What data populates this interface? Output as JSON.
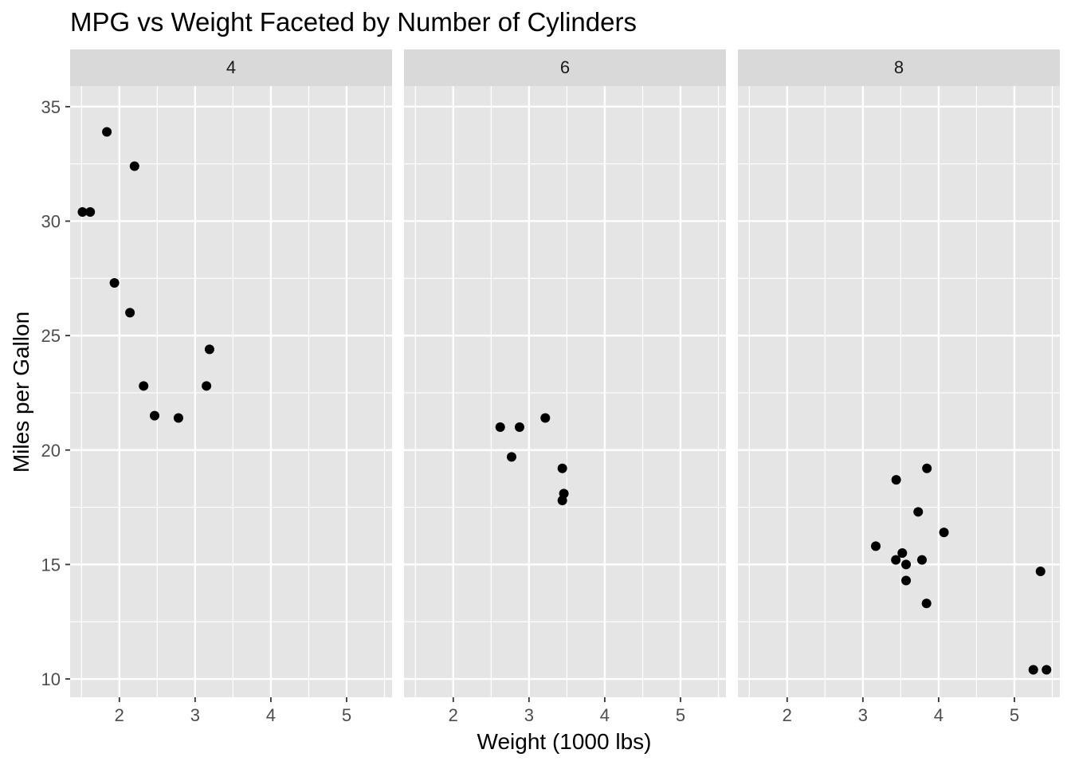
{
  "chart_data": {
    "type": "scatter",
    "title": "MPG vs Weight Faceted by Number of Cylinders",
    "xlabel": "Weight (1000 lbs)",
    "ylabel": "Miles per Gallon",
    "xlim": [
      1.35,
      5.6
    ],
    "ylim": [
      9.2,
      35.9
    ],
    "xticks": [
      2,
      3,
      4,
      5
    ],
    "yticks": [
      10,
      15,
      20,
      25,
      30,
      35
    ],
    "grid": true,
    "colors": {
      "panel_bg": "#e5e5e5",
      "strip_bg": "#d9d9d9",
      "grid": "#ffffff",
      "point": "#000000"
    },
    "facets": [
      {
        "label": "4",
        "points": [
          {
            "x": 2.32,
            "y": 22.8
          },
          {
            "x": 3.19,
            "y": 24.4
          },
          {
            "x": 3.15,
            "y": 22.8
          },
          {
            "x": 2.2,
            "y": 32.4
          },
          {
            "x": 1.615,
            "y": 30.4
          },
          {
            "x": 1.835,
            "y": 33.9
          },
          {
            "x": 2.465,
            "y": 21.5
          },
          {
            "x": 1.935,
            "y": 27.3
          },
          {
            "x": 2.14,
            "y": 26.0
          },
          {
            "x": 1.513,
            "y": 30.4
          },
          {
            "x": 2.78,
            "y": 21.4
          }
        ]
      },
      {
        "label": "6",
        "points": [
          {
            "x": 2.62,
            "y": 21.0
          },
          {
            "x": 2.875,
            "y": 21.0
          },
          {
            "x": 3.215,
            "y": 21.4
          },
          {
            "x": 3.46,
            "y": 18.1
          },
          {
            "x": 3.44,
            "y": 19.2
          },
          {
            "x": 3.44,
            "y": 17.8
          },
          {
            "x": 2.77,
            "y": 19.7
          }
        ]
      },
      {
        "label": "8",
        "points": [
          {
            "x": 3.44,
            "y": 18.7
          },
          {
            "x": 3.57,
            "y": 14.3
          },
          {
            "x": 4.07,
            "y": 16.4
          },
          {
            "x": 3.73,
            "y": 17.3
          },
          {
            "x": 3.78,
            "y": 15.2
          },
          {
            "x": 5.25,
            "y": 10.4
          },
          {
            "x": 5.424,
            "y": 10.4
          },
          {
            "x": 5.345,
            "y": 14.7
          },
          {
            "x": 3.52,
            "y": 15.5
          },
          {
            "x": 3.435,
            "y": 15.2
          },
          {
            "x": 3.84,
            "y": 13.3
          },
          {
            "x": 3.845,
            "y": 19.2
          },
          {
            "x": 3.17,
            "y": 15.8
          },
          {
            "x": 3.57,
            "y": 15.0
          }
        ]
      }
    ]
  }
}
